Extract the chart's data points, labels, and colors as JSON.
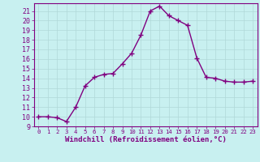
{
  "x": [
    0,
    1,
    2,
    3,
    4,
    5,
    6,
    7,
    8,
    9,
    10,
    11,
    12,
    13,
    14,
    15,
    16,
    17,
    18,
    19,
    20,
    21,
    22,
    23
  ],
  "y": [
    10.0,
    10.0,
    9.9,
    9.5,
    11.0,
    13.2,
    14.1,
    14.4,
    14.5,
    15.5,
    16.6,
    18.5,
    21.0,
    21.5,
    20.5,
    20.0,
    19.5,
    16.1,
    14.1,
    14.0,
    13.7,
    13.6,
    13.6,
    13.7
  ],
  "line_color": "#800080",
  "marker": "+",
  "marker_size": 4,
  "marker_edge_width": 1.0,
  "bg_color": "#c8f0f0",
  "grid_color": "#b0d8d8",
  "xlabel": "Windchill (Refroidissement éolien,°C)",
  "ylabel": "",
  "title": "",
  "xlim": [
    -0.5,
    23.5
  ],
  "ylim": [
    9,
    21.8
  ],
  "yticks": [
    9,
    10,
    11,
    12,
    13,
    14,
    15,
    16,
    17,
    18,
    19,
    20,
    21
  ],
  "xticks": [
    0,
    1,
    2,
    3,
    4,
    5,
    6,
    7,
    8,
    9,
    10,
    11,
    12,
    13,
    14,
    15,
    16,
    17,
    18,
    19,
    20,
    21,
    22,
    23
  ],
  "xlabel_fontsize": 6.5,
  "tick_fontsize": 6.0,
  "line_width": 1.0,
  "purple": "#800080"
}
